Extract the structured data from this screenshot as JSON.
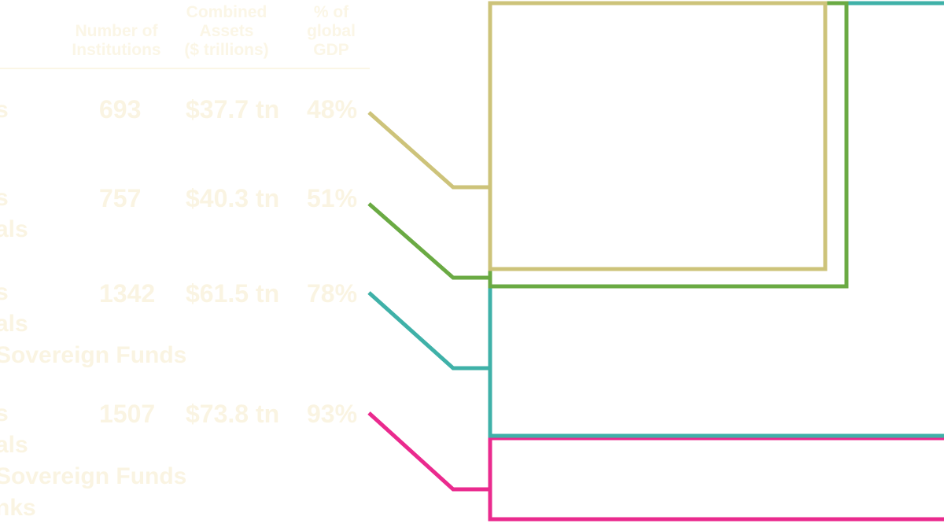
{
  "chart_data": {
    "type": "table",
    "columns": [
      {
        "lines": [
          "Number of",
          "Institutions"
        ]
      },
      {
        "lines": [
          "Combined",
          "Assets",
          "($ trillions)"
        ]
      },
      {
        "lines": [
          "% of",
          "global",
          "GDP"
        ]
      }
    ],
    "rows": [
      {
        "label_lines": [
          "s"
        ],
        "institutions": "693",
        "assets": "$37.7 tn",
        "gdp": "48%",
        "color": "#cdc37a"
      },
      {
        "label_lines": [
          "s",
          "als"
        ],
        "institutions": "757",
        "assets": "$40.3 tn",
        "gdp": "51%",
        "color": "#6aaa43"
      },
      {
        "label_lines": [
          "s",
          "als",
          "Sovereign Funds"
        ],
        "institutions": "1342",
        "assets": "$61.5 tn",
        "gdp": "78%",
        "color": "#3fb1a8"
      },
      {
        "label_lines": [
          "s",
          "als",
          "Sovereign Funds",
          "nks"
        ],
        "institutions": "1507",
        "assets": "$73.8 tn",
        "gdp": "93%",
        "color": "#ea2a8e"
      }
    ]
  }
}
